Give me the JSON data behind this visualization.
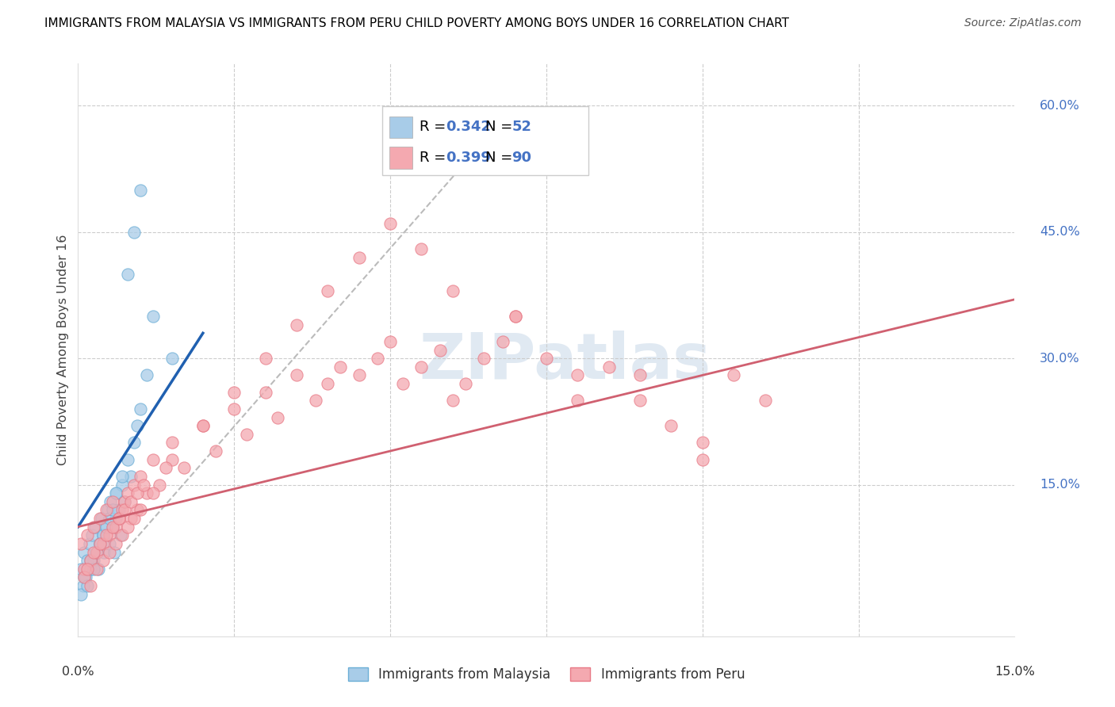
{
  "title": "IMMIGRANTS FROM MALAYSIA VS IMMIGRANTS FROM PERU CHILD POVERTY AMONG BOYS UNDER 16 CORRELATION CHART",
  "source": "Source: ZipAtlas.com",
  "watermark": "ZIPatlas",
  "xlim": [
    0.0,
    15.0
  ],
  "ylim": [
    -3.0,
    65.0
  ],
  "ylabel_ticks": [
    15,
    30,
    45,
    60
  ],
  "ylabel_labels": [
    "15.0%",
    "30.0%",
    "45.0%",
    "60.0%"
  ],
  "xtick_positions": [
    0,
    2.5,
    5.0,
    7.5,
    10.0,
    12.5,
    15.0
  ],
  "malaysia_R": 0.342,
  "malaysia_N": 52,
  "peru_R": 0.399,
  "peru_N": 90,
  "malaysia_color": "#a8cce8",
  "malaysia_edge_color": "#6baed6",
  "peru_color": "#f4a9b0",
  "peru_edge_color": "#e87a87",
  "malaysia_line_color": "#2060b0",
  "peru_line_color": "#d06070",
  "ref_line_color": "#bbbbbb",
  "background_color": "#ffffff",
  "grid_color": "#cccccc",
  "title_color": "#000000",
  "right_label_color": "#4472c4",
  "legend_color": "#4472c4",
  "malaysia_scatter_x": [
    0.05,
    0.08,
    0.1,
    0.12,
    0.15,
    0.18,
    0.2,
    0.22,
    0.25,
    0.28,
    0.3,
    0.32,
    0.35,
    0.38,
    0.4,
    0.42,
    0.45,
    0.48,
    0.5,
    0.52,
    0.55,
    0.58,
    0.6,
    0.62,
    0.65,
    0.68,
    0.7,
    0.75,
    0.8,
    0.85,
    0.9,
    0.95,
    1.0,
    1.1,
    1.2,
    0.05,
    0.1,
    0.15,
    0.2,
    0.25,
    0.3,
    0.35,
    0.4,
    0.45,
    0.5,
    0.55,
    0.6,
    0.7,
    0.8,
    0.9,
    1.0,
    1.5
  ],
  "malaysia_scatter_y": [
    5.0,
    3.0,
    7.0,
    4.0,
    6.0,
    8.0,
    5.0,
    9.0,
    6.0,
    10.0,
    7.0,
    5.0,
    8.0,
    11.0,
    9.0,
    7.0,
    10.0,
    12.0,
    8.0,
    13.0,
    10.0,
    7.0,
    11.0,
    14.0,
    12.0,
    9.0,
    15.0,
    13.0,
    18.0,
    16.0,
    20.0,
    22.0,
    24.0,
    28.0,
    35.0,
    2.0,
    4.0,
    3.0,
    6.0,
    5.0,
    7.0,
    8.0,
    9.0,
    10.0,
    11.0,
    12.0,
    14.0,
    16.0,
    40.0,
    45.0,
    50.0,
    30.0
  ],
  "peru_scatter_x": [
    0.05,
    0.1,
    0.15,
    0.2,
    0.25,
    0.3,
    0.35,
    0.4,
    0.45,
    0.5,
    0.55,
    0.6,
    0.65,
    0.7,
    0.75,
    0.8,
    0.85,
    0.9,
    0.95,
    1.0,
    1.1,
    1.2,
    1.3,
    1.5,
    1.7,
    2.0,
    2.2,
    2.5,
    2.7,
    3.0,
    3.2,
    3.5,
    3.8,
    4.0,
    4.2,
    4.5,
    4.8,
    5.0,
    5.2,
    5.5,
    5.8,
    6.0,
    6.2,
    6.5,
    6.8,
    7.0,
    7.5,
    8.0,
    8.5,
    9.0,
    9.5,
    10.0,
    10.5,
    11.0,
    0.1,
    0.2,
    0.3,
    0.4,
    0.5,
    0.6,
    0.7,
    0.8,
    0.9,
    1.0,
    1.2,
    1.5,
    2.0,
    2.5,
    3.0,
    3.5,
    4.0,
    4.5,
    5.0,
    5.5,
    6.0,
    7.0,
    8.0,
    9.0,
    10.0,
    0.15,
    0.25,
    0.35,
    0.45,
    0.55,
    0.65,
    0.75,
    0.85,
    0.95,
    1.05,
    1.4
  ],
  "peru_scatter_y": [
    8.0,
    5.0,
    9.0,
    6.0,
    10.0,
    7.0,
    11.0,
    8.0,
    12.0,
    9.0,
    13.0,
    10.0,
    11.0,
    12.0,
    13.0,
    14.0,
    11.0,
    15.0,
    12.0,
    16.0,
    14.0,
    18.0,
    15.0,
    20.0,
    17.0,
    22.0,
    19.0,
    24.0,
    21.0,
    26.0,
    23.0,
    28.0,
    25.0,
    27.0,
    29.0,
    28.0,
    30.0,
    32.0,
    27.0,
    29.0,
    31.0,
    25.0,
    27.0,
    30.0,
    32.0,
    35.0,
    30.0,
    28.0,
    29.0,
    25.0,
    22.0,
    20.0,
    28.0,
    25.0,
    4.0,
    3.0,
    5.0,
    6.0,
    7.0,
    8.0,
    9.0,
    10.0,
    11.0,
    12.0,
    14.0,
    18.0,
    22.0,
    26.0,
    30.0,
    34.0,
    38.0,
    42.0,
    46.0,
    43.0,
    38.0,
    35.0,
    25.0,
    28.0,
    18.0,
    5.0,
    7.0,
    8.0,
    9.0,
    10.0,
    11.0,
    12.0,
    13.0,
    14.0,
    15.0,
    17.0
  ]
}
